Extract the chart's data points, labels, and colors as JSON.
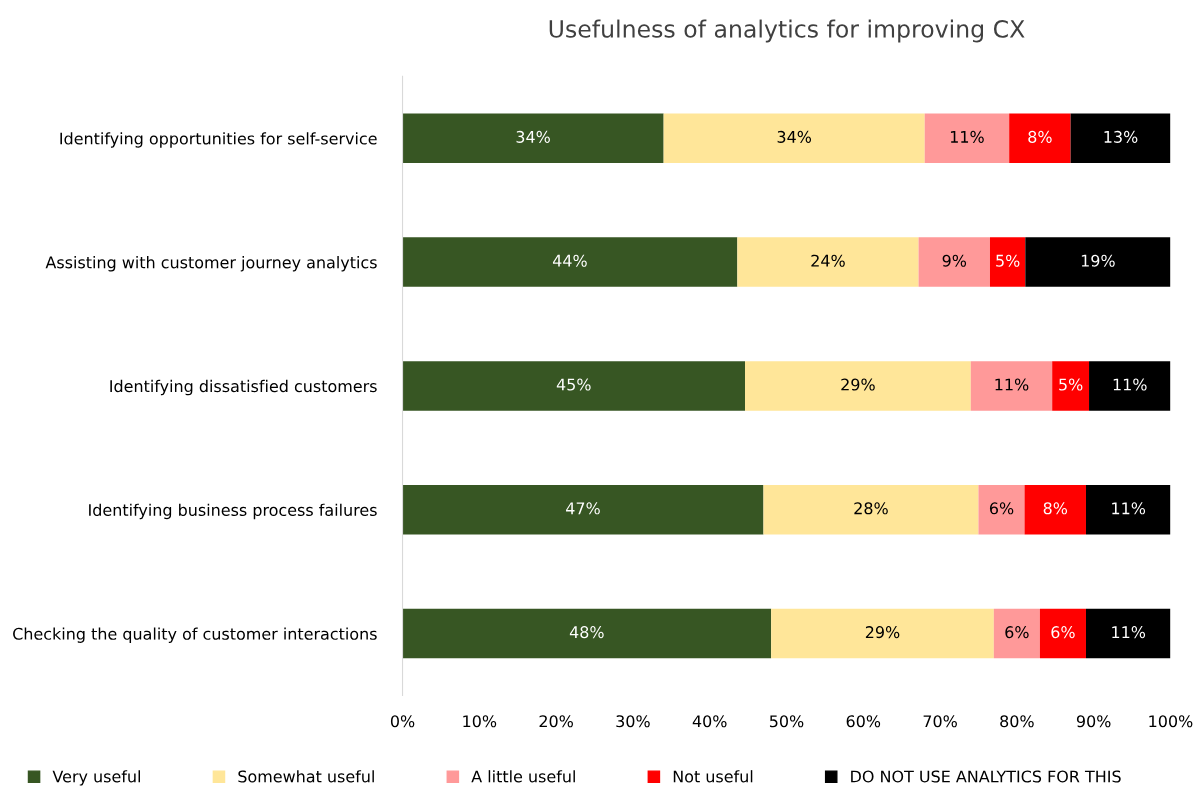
{
  "chart_data": {
    "type": "bar",
    "orientation": "horizontal",
    "stacked": true,
    "title": "Usefulness of analytics for improving CX",
    "categories": [
      "Identifying opportunities for self-service",
      "Assisting with customer journey analytics",
      "Identifying dissatisfied customers",
      "Identifying business process failures",
      "Checking the quality of customer interactions"
    ],
    "series": [
      {
        "name": "Very useful",
        "color": "#375623",
        "values": [
          34,
          43.6,
          44.6,
          47,
          48
        ],
        "value_labels": [
          "34%",
          "44%",
          "45%",
          "47%",
          "48%"
        ]
      },
      {
        "name": "Somewhat useful",
        "color": "#ffe699",
        "values": [
          34,
          23.6,
          29.4,
          28,
          29
        ],
        "value_labels": [
          "34%",
          "24%",
          "29%",
          "28%",
          "29%"
        ]
      },
      {
        "name": "A little useful",
        "color": "#ff9999",
        "values": [
          11,
          9.3,
          10.6,
          6,
          6
        ],
        "value_labels": [
          "11%",
          "9%",
          "11%",
          "6%",
          "6%"
        ]
      },
      {
        "name": "Not useful",
        "color": "#ff0000",
        "values": [
          8,
          4.6,
          4.8,
          8,
          6
        ],
        "value_labels": [
          "8%",
          "5%",
          "5%",
          "8%",
          "6%"
        ]
      },
      {
        "name": "DO NOT USE ANALYTICS FOR THIS",
        "color": "#000000",
        "values": [
          13,
          18.9,
          10.6,
          11,
          11
        ],
        "value_labels": [
          "13%",
          "19%",
          "11%",
          "11%",
          "11%"
        ]
      }
    ],
    "xlim": [
      0,
      100
    ],
    "xticks": [
      {
        "value": 0,
        "label": "0%"
      },
      {
        "value": 10,
        "label": "10%"
      },
      {
        "value": 20,
        "label": "20%"
      },
      {
        "value": 30,
        "label": "30%"
      },
      {
        "value": 40,
        "label": "40%"
      },
      {
        "value": 50,
        "label": "50%"
      },
      {
        "value": 60,
        "label": "60%"
      },
      {
        "value": 70,
        "label": "70%"
      },
      {
        "value": 80,
        "label": "80%"
      },
      {
        "value": 90,
        "label": "90%"
      },
      {
        "value": 100,
        "label": "100%"
      }
    ],
    "legend": "bottom",
    "grid": false
  }
}
